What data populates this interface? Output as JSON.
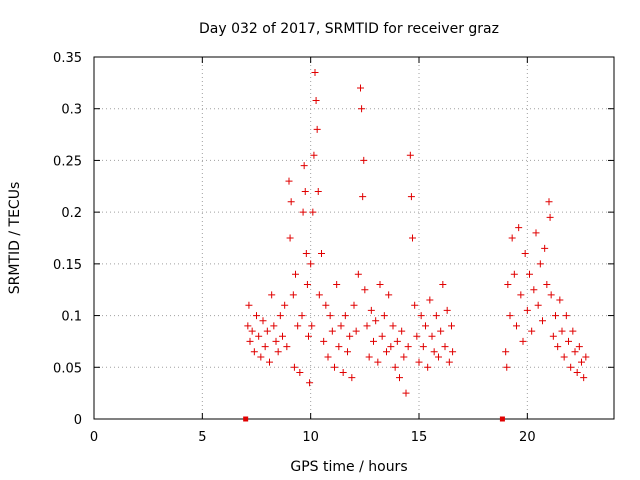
{
  "chart_data": {
    "type": "scatter",
    "title": "Day 032 of 2017, SRMTID for receiver graz",
    "xlabel": "GPS time / hours",
    "ylabel": "SRMTID / TECUs",
    "xlim": [
      0,
      24
    ],
    "ylim": [
      0,
      0.35
    ],
    "x_ticks": [
      0,
      5,
      10,
      15,
      20
    ],
    "x_tick_labels": [
      "0",
      "5",
      "10",
      "15",
      "20"
    ],
    "y_ticks": [
      0,
      0.05,
      0.1,
      0.15,
      0.2,
      0.25,
      0.3,
      0.35
    ],
    "y_tick_labels": [
      "0",
      "0.05",
      "0.1",
      "0.15",
      "0.2",
      "0.25",
      "0.3",
      "0.35"
    ],
    "grid": true,
    "marker": "+",
    "color": "#e00000",
    "series": [
      {
        "name": "SRMTID",
        "square_markers": [
          [
            7.0,
            0.0
          ],
          [
            18.85,
            0.0
          ]
        ],
        "points": [
          [
            7.1,
            0.09
          ],
          [
            7.15,
            0.11
          ],
          [
            7.2,
            0.075
          ],
          [
            7.3,
            0.085
          ],
          [
            7.4,
            0.065
          ],
          [
            7.5,
            0.1
          ],
          [
            7.6,
            0.08
          ],
          [
            7.7,
            0.06
          ],
          [
            7.8,
            0.095
          ],
          [
            7.9,
            0.07
          ],
          [
            8.0,
            0.085
          ],
          [
            8.1,
            0.055
          ],
          [
            8.2,
            0.12
          ],
          [
            8.3,
            0.09
          ],
          [
            8.4,
            0.075
          ],
          [
            8.5,
            0.065
          ],
          [
            8.6,
            0.1
          ],
          [
            8.7,
            0.08
          ],
          [
            8.8,
            0.11
          ],
          [
            8.9,
            0.07
          ],
          [
            9.0,
            0.23
          ],
          [
            9.05,
            0.175
          ],
          [
            9.1,
            0.21
          ],
          [
            9.2,
            0.12
          ],
          [
            9.25,
            0.05
          ],
          [
            9.3,
            0.14
          ],
          [
            9.4,
            0.09
          ],
          [
            9.5,
            0.045
          ],
          [
            9.6,
            0.1
          ],
          [
            9.65,
            0.2
          ],
          [
            9.7,
            0.245
          ],
          [
            9.75,
            0.22
          ],
          [
            9.8,
            0.16
          ],
          [
            9.85,
            0.13
          ],
          [
            9.9,
            0.08
          ],
          [
            9.95,
            0.035
          ],
          [
            10.0,
            0.15
          ],
          [
            10.05,
            0.09
          ],
          [
            10.1,
            0.2
          ],
          [
            10.15,
            0.255
          ],
          [
            10.2,
            0.335
          ],
          [
            10.25,
            0.308
          ],
          [
            10.3,
            0.28
          ],
          [
            10.35,
            0.22
          ],
          [
            10.4,
            0.12
          ],
          [
            10.5,
            0.16
          ],
          [
            10.6,
            0.075
          ],
          [
            10.7,
            0.11
          ],
          [
            10.8,
            0.06
          ],
          [
            10.9,
            0.1
          ],
          [
            11.0,
            0.085
          ],
          [
            11.1,
            0.05
          ],
          [
            11.2,
            0.13
          ],
          [
            11.3,
            0.07
          ],
          [
            11.4,
            0.09
          ],
          [
            11.5,
            0.045
          ],
          [
            11.6,
            0.1
          ],
          [
            11.7,
            0.065
          ],
          [
            11.8,
            0.08
          ],
          [
            11.9,
            0.04
          ],
          [
            12.0,
            0.11
          ],
          [
            12.1,
            0.085
          ],
          [
            12.2,
            0.14
          ],
          [
            12.3,
            0.32
          ],
          [
            12.35,
            0.3
          ],
          [
            12.4,
            0.215
          ],
          [
            12.45,
            0.25
          ],
          [
            12.5,
            0.125
          ],
          [
            12.6,
            0.09
          ],
          [
            12.7,
            0.06
          ],
          [
            12.8,
            0.105
          ],
          [
            12.9,
            0.075
          ],
          [
            13.0,
            0.095
          ],
          [
            13.1,
            0.055
          ],
          [
            13.2,
            0.13
          ],
          [
            13.3,
            0.08
          ],
          [
            13.4,
            0.1
          ],
          [
            13.5,
            0.065
          ],
          [
            13.6,
            0.12
          ],
          [
            13.7,
            0.07
          ],
          [
            13.8,
            0.09
          ],
          [
            13.9,
            0.05
          ],
          [
            14.0,
            0.075
          ],
          [
            14.1,
            0.04
          ],
          [
            14.2,
            0.085
          ],
          [
            14.3,
            0.06
          ],
          [
            14.4,
            0.025
          ],
          [
            14.5,
            0.07
          ],
          [
            14.6,
            0.255
          ],
          [
            14.65,
            0.215
          ],
          [
            14.7,
            0.175
          ],
          [
            14.8,
            0.11
          ],
          [
            14.9,
            0.08
          ],
          [
            15.0,
            0.055
          ],
          [
            15.1,
            0.1
          ],
          [
            15.2,
            0.07
          ],
          [
            15.3,
            0.09
          ],
          [
            15.4,
            0.05
          ],
          [
            15.5,
            0.115
          ],
          [
            15.6,
            0.08
          ],
          [
            15.7,
            0.065
          ],
          [
            15.8,
            0.1
          ],
          [
            15.9,
            0.06
          ],
          [
            16.0,
            0.085
          ],
          [
            16.1,
            0.13
          ],
          [
            16.2,
            0.07
          ],
          [
            16.3,
            0.105
          ],
          [
            16.4,
            0.055
          ],
          [
            16.5,
            0.09
          ],
          [
            16.55,
            0.065
          ],
          [
            19.0,
            0.065
          ],
          [
            19.05,
            0.05
          ],
          [
            19.1,
            0.13
          ],
          [
            19.2,
            0.1
          ],
          [
            19.3,
            0.175
          ],
          [
            19.4,
            0.14
          ],
          [
            19.5,
            0.09
          ],
          [
            19.6,
            0.185
          ],
          [
            19.7,
            0.12
          ],
          [
            19.8,
            0.075
          ],
          [
            19.9,
            0.16
          ],
          [
            20.0,
            0.105
          ],
          [
            20.1,
            0.14
          ],
          [
            20.2,
            0.085
          ],
          [
            20.3,
            0.125
          ],
          [
            20.4,
            0.18
          ],
          [
            20.5,
            0.11
          ],
          [
            20.6,
            0.15
          ],
          [
            20.7,
            0.095
          ],
          [
            20.8,
            0.165
          ],
          [
            20.9,
            0.13
          ],
          [
            21.0,
            0.21
          ],
          [
            21.05,
            0.195
          ],
          [
            21.1,
            0.12
          ],
          [
            21.2,
            0.08
          ],
          [
            21.3,
            0.1
          ],
          [
            21.4,
            0.07
          ],
          [
            21.5,
            0.115
          ],
          [
            21.6,
            0.085
          ],
          [
            21.7,
            0.06
          ],
          [
            21.8,
            0.1
          ],
          [
            21.9,
            0.075
          ],
          [
            22.0,
            0.05
          ],
          [
            22.1,
            0.085
          ],
          [
            22.2,
            0.065
          ],
          [
            22.3,
            0.045
          ],
          [
            22.4,
            0.07
          ],
          [
            22.5,
            0.055
          ],
          [
            22.6,
            0.04
          ],
          [
            22.7,
            0.06
          ]
        ]
      }
    ]
  }
}
